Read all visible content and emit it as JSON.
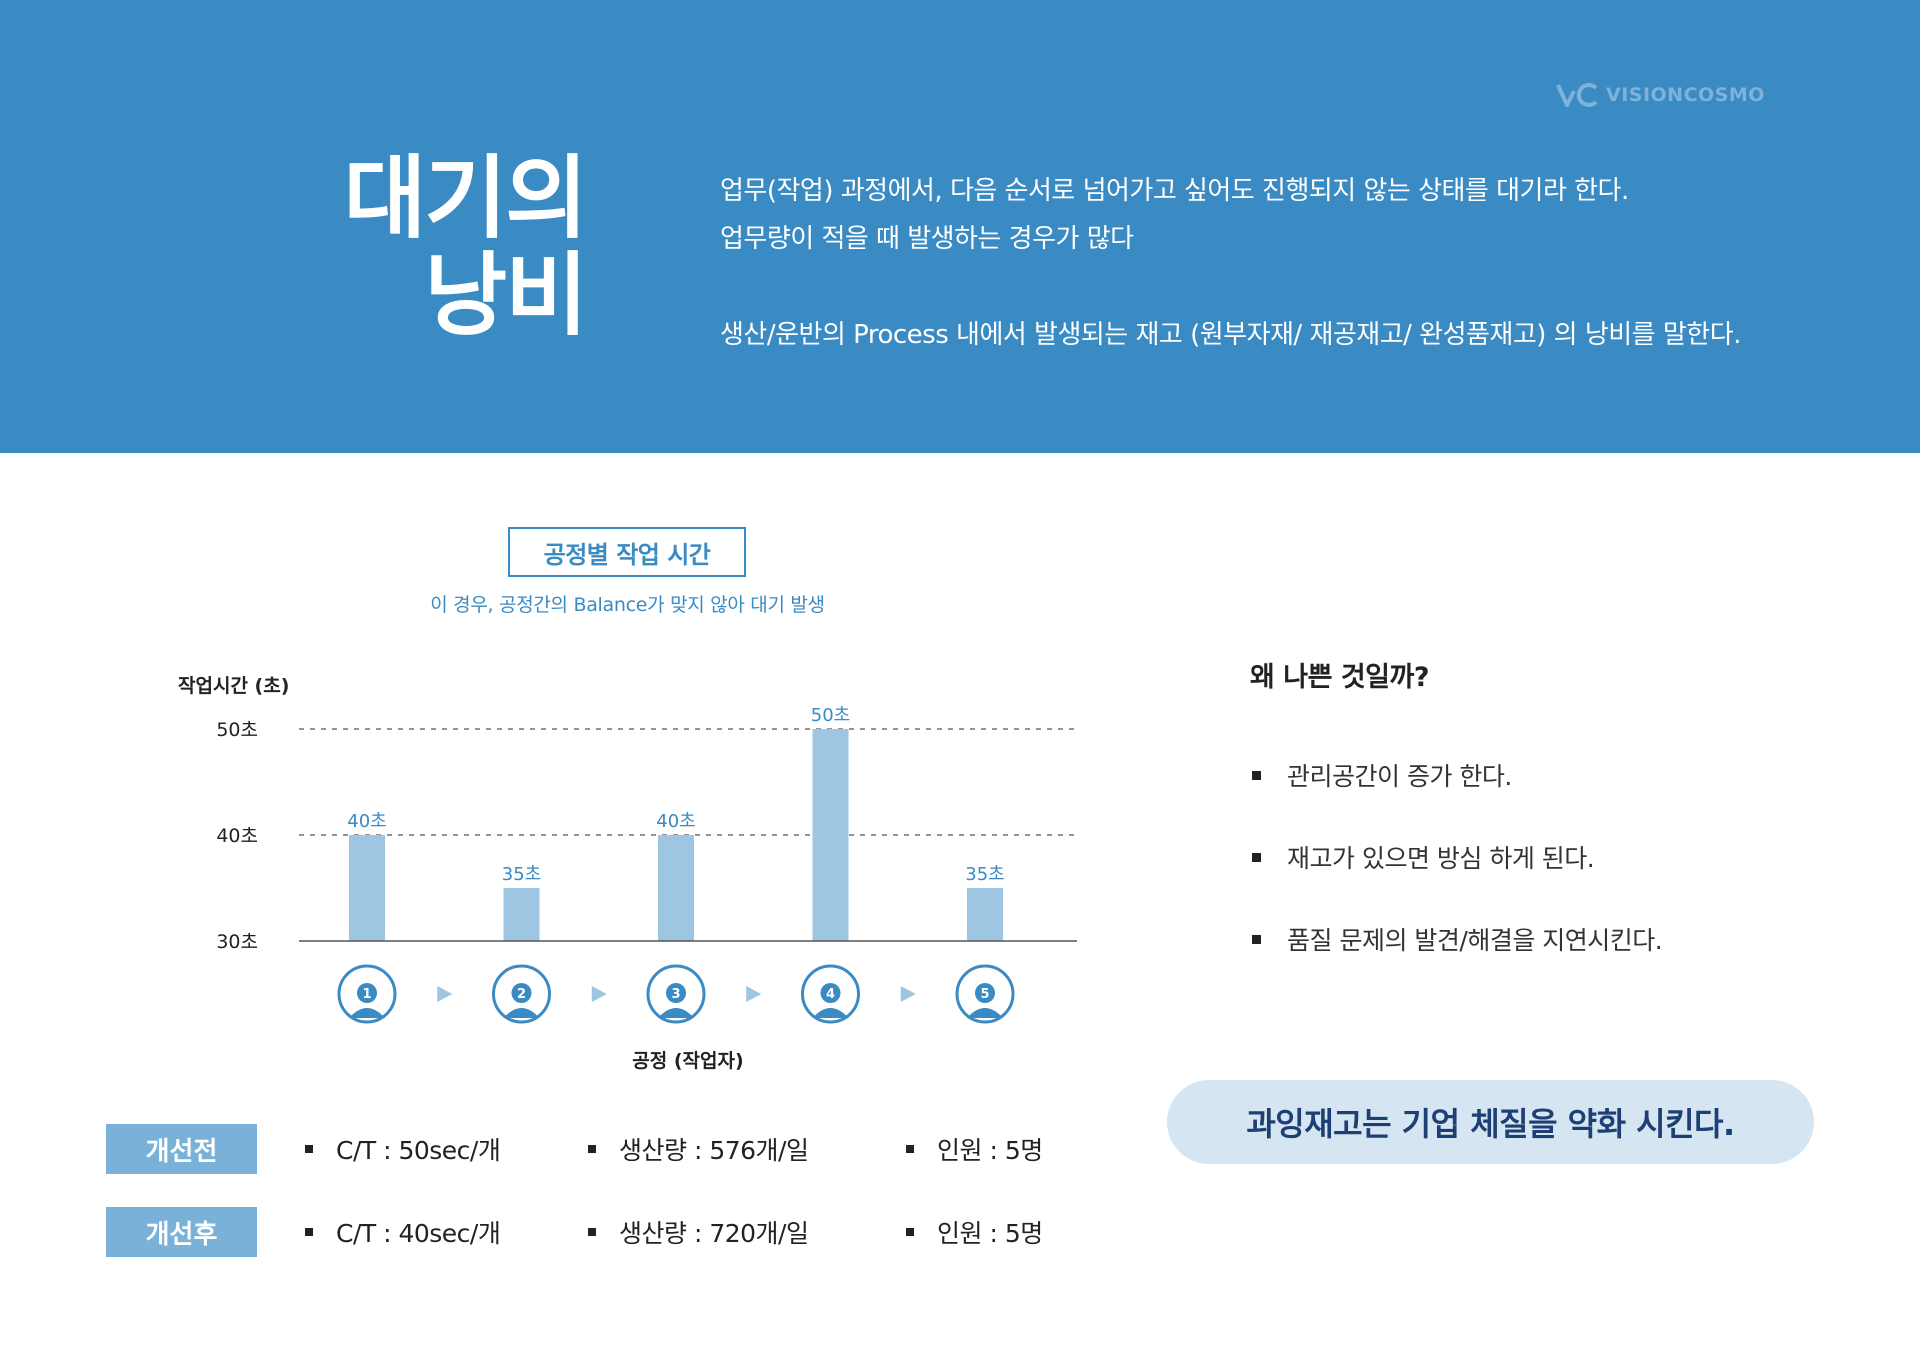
{
  "logo": {
    "text": "VISIONCOSMO",
    "icon": "vc-logo-icon"
  },
  "title": {
    "line1": "대기의",
    "line2": "낭비"
  },
  "description": {
    "line1": "업무(작업) 과정에서, 다음 순서로 넘어가고 싶어도 진행되지 않는 상태를 대기라 한다.",
    "line2": "업무량이 적을 때 발생하는 경우가 많다",
    "line3": "생산/운반의 Process 내에서 발생되는 재고 (원부자재/ 재공재고/ 완성품재고) 의 낭비를 말한다."
  },
  "chart_data": {
    "type": "bar",
    "title": "공정별 작업 시간",
    "subtitle": "이 경우, 공정간의 Balance가 맞지 않아 대기 발생",
    "ylabel": "작업시간 (초)",
    "xlabel": "공정 (작업자)",
    "categories": [
      "1",
      "2",
      "3",
      "4",
      "5"
    ],
    "values": [
      40,
      35,
      40,
      50,
      35
    ],
    "data_labels": [
      "40초",
      "35초",
      "40초",
      "50초",
      "35초"
    ],
    "ylim": [
      30,
      50
    ],
    "yticks": [
      {
        "value": 30,
        "label": "30초"
      },
      {
        "value": 40,
        "label": "40초"
      },
      {
        "value": 50,
        "label": "50초"
      }
    ],
    "reference_lines": [
      40,
      50
    ],
    "bar_color": "#9ec5e2",
    "accent_color": "#3a8ac4",
    "category_icon": "worker-icon",
    "arrow_icon": "triangle-right-icon"
  },
  "why": {
    "heading": "왜 나쁜 것일까?",
    "items": [
      "관리공간이 증가 한다.",
      "재고가 있으면 방심 하게 된다.",
      "품질 문제의 발견/해결을 지연시킨다."
    ]
  },
  "callout": "과잉재고는 기업 체질을 약화 시킨다.",
  "comparison": {
    "before": {
      "label": "개선전",
      "ct": "C/T : 50sec/개",
      "output": "생산량 : 576개/일",
      "staff": "인원 : 5명"
    },
    "after": {
      "label": "개선후",
      "ct": "C/T : 40sec/개",
      "output": "생산량 : 720개/일",
      "staff": "인원 : 5명"
    }
  },
  "colors": {
    "header": "#3a8ac4",
    "tag": "#7ab1d9",
    "callout_bg": "#d5e6f2",
    "callout_text": "#1d3f74"
  }
}
